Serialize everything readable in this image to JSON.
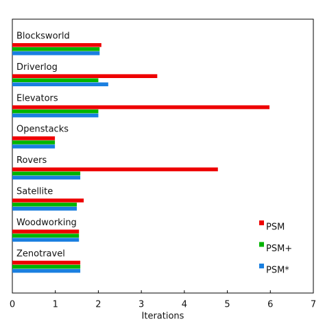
{
  "chart_data": {
    "type": "barh",
    "categories": [
      "Blocksworld",
      "Driverlog",
      "Elevators",
      "Openstacks",
      "Rovers",
      "Satellite",
      "Woodworking",
      "Zenotravel"
    ],
    "series": [
      {
        "name": "PSM",
        "color": "#ee0000",
        "values": [
          2.07,
          3.37,
          5.98,
          0.99,
          4.78,
          1.66,
          1.55,
          1.58
        ]
      },
      {
        "name": "PSM+",
        "color": "#00b400",
        "values": [
          2.03,
          2.0,
          2.0,
          0.99,
          1.58,
          1.5,
          1.55,
          1.58
        ]
      },
      {
        "name": "PSM*",
        "color": "#1a7fe0",
        "values": [
          2.03,
          2.23,
          2.0,
          0.99,
          1.58,
          1.5,
          1.55,
          1.58
        ]
      }
    ],
    "xlabel": "Iterations",
    "xlim": [
      0,
      7
    ],
    "xticks": [
      0,
      1,
      2,
      3,
      4,
      5,
      6,
      7
    ],
    "legend_position": "lower right"
  }
}
